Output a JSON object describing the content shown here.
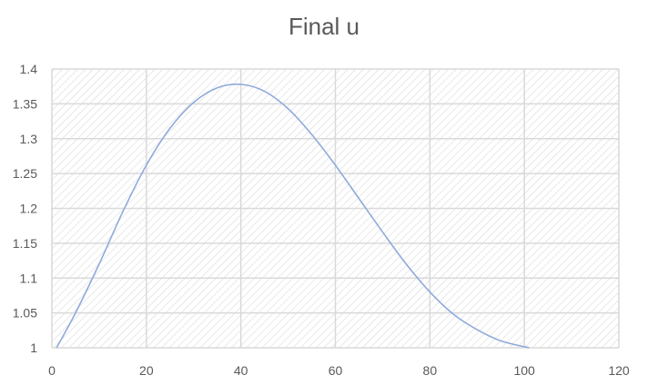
{
  "chart_data": {
    "type": "line",
    "title": "Final u",
    "xlabel": "",
    "ylabel": "",
    "xlim": [
      0,
      120
    ],
    "ylim": [
      1,
      1.4
    ],
    "x_ticks": [
      "0",
      "20",
      "40",
      "60",
      "80",
      "100",
      "120"
    ],
    "y_ticks": [
      "1",
      "1.05",
      "1.1",
      "1.15",
      "1.2",
      "1.25",
      "1.3",
      "1.35",
      "1.4"
    ],
    "grid": true,
    "legend": "none",
    "series": [
      {
        "color": "#8faadc",
        "x": [
          1,
          5,
          10,
          15,
          20,
          25,
          30,
          35,
          40,
          45,
          50,
          55,
          60,
          65,
          70,
          75,
          80,
          85,
          90,
          95,
          101
        ],
        "y": [
          1.0,
          1.05,
          1.12,
          1.195,
          1.262,
          1.315,
          1.352,
          1.373,
          1.378,
          1.368,
          1.343,
          1.306,
          1.262,
          1.214,
          1.166,
          1.12,
          1.08,
          1.048,
          1.026,
          1.01,
          1.0
        ]
      }
    ]
  }
}
